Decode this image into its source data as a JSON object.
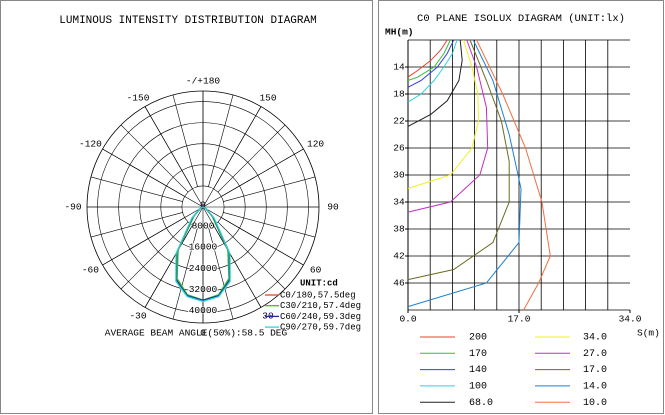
{
  "chart_data": [
    {
      "type": "polar",
      "title": "LUMINOUS INTENSITY DISTRIBUTION DIAGRAM",
      "theta": [
        -90,
        -75,
        -60,
        -45,
        -30,
        -20,
        -10,
        0,
        10,
        20,
        30,
        45,
        60,
        75,
        90
      ],
      "series": [
        {
          "name": "C0/180,57.5deg",
          "color": "#e8422f",
          "values": [
            0,
            300,
            1200,
            5000,
            19000,
            29000,
            34000,
            35500,
            34000,
            29000,
            19000,
            5000,
            1200,
            300,
            0
          ]
        },
        {
          "name": "C30/210,57.4deg",
          "color": "#2fc23a",
          "values": [
            0,
            300,
            1200,
            4800,
            18800,
            28800,
            33800,
            35300,
            33800,
            28800,
            18800,
            4800,
            1200,
            300,
            0
          ]
        },
        {
          "name": "C60/240,59.3deg",
          "color": "#1f2f8f",
          "values": [
            0,
            350,
            1400,
            5600,
            20000,
            29500,
            34200,
            35400,
            34200,
            29500,
            20000,
            5600,
            1400,
            350,
            0
          ]
        },
        {
          "name": "C90/270,59.7deg",
          "color": "#2ad4d4",
          "values": [
            0,
            400,
            1500,
            6000,
            20500,
            30000,
            34500,
            35800,
            34500,
            30000,
            20500,
            6000,
            1500,
            400,
            0
          ]
        }
      ],
      "rlim": [
        0,
        44000
      ],
      "rticks": [
        0,
        8000,
        16000,
        24000,
        32000,
        40000
      ],
      "angle_ticks": [
        -150,
        -120,
        -90,
        -60,
        -30,
        0,
        30,
        60,
        90,
        120,
        150,
        {
          "value": 180,
          "label": "-/+180"
        }
      ],
      "unit_label": "UNIT:cd",
      "note": "AVERAGE BEAM ANGLE(50%):58.5 DEG"
    },
    {
      "type": "line",
      "title": "C0 PLANE ISOLUX DIAGRAM (UNIT:lx)",
      "y_label": "MH(m)",
      "x_label": "S(m)",
      "xlim": [
        0,
        34
      ],
      "xticks": [
        {
          "value": 0,
          "label": "0.0"
        },
        {
          "value": 17,
          "label": "17.0"
        },
        {
          "value": 34,
          "label": "34.0"
        }
      ],
      "ylim": [
        10,
        50
      ],
      "yticks": [
        14,
        18,
        22,
        26,
        30,
        34,
        38,
        42,
        46
      ],
      "y_inverted": true,
      "grid": true,
      "series": [
        {
          "name": "200",
          "color": "#e8422f",
          "x": [
            6,
            5,
            3.5,
            1.5,
            0
          ],
          "values": [
            10,
            11.5,
            13,
            14.5,
            15.5
          ]
        },
        {
          "name": "170",
          "color": "#2fc23a",
          "x": [
            6.5,
            5.5,
            4,
            1.5,
            0
          ],
          "values": [
            10,
            12,
            14,
            15.5,
            16
          ]
        },
        {
          "name": "140",
          "color": "#3a3ae0",
          "x": [
            7,
            6,
            4.5,
            2,
            0
          ],
          "values": [
            10,
            12,
            14,
            16,
            17
          ]
        },
        {
          "name": "100",
          "color": "#2ad4e0",
          "x": [
            7.5,
            6.8,
            5.5,
            4,
            2,
            0
          ],
          "values": [
            10,
            12,
            14,
            16,
            18,
            19.2
          ]
        },
        {
          "name": "68.0",
          "color": "#202020",
          "x": [
            8,
            8.3,
            7.8,
            6,
            3.5,
            0
          ],
          "values": [
            10,
            13,
            16,
            19,
            21,
            22.8
          ]
        },
        {
          "name": "34.0",
          "color": "#f0f020",
          "x": [
            8.5,
            9.8,
            10.7,
            10.8,
            9.8,
            6.5,
            0
          ],
          "values": [
            10,
            14,
            18,
            22,
            26,
            30,
            32
          ]
        },
        {
          "name": "27.0",
          "color": "#c030c0",
          "x": [
            9,
            10.5,
            12,
            12.2,
            11,
            6.5,
            0
          ],
          "values": [
            10,
            14,
            20,
            26,
            30,
            34,
            35.5
          ]
        },
        {
          "name": "17.0",
          "color": "#6b6b1e",
          "x": [
            9.5,
            12,
            14.3,
            15.5,
            15.5,
            13,
            7,
            0
          ],
          "values": [
            10,
            16,
            22,
            28,
            34,
            40,
            44,
            45.5
          ]
        },
        {
          "name": "14.0",
          "color": "#1e7fd0",
          "x": [
            10,
            13,
            15.5,
            17.3,
            17,
            12,
            0
          ],
          "values": [
            10,
            16,
            24,
            32,
            40,
            46,
            49.5
          ]
        },
        {
          "name": "10.0",
          "color": "#f07040",
          "x": [
            10.5,
            14.5,
            18,
            20.5,
            21.8,
            20,
            17.7
          ],
          "values": [
            10,
            18,
            26,
            34,
            42,
            46,
            50
          ]
        }
      ]
    }
  ]
}
